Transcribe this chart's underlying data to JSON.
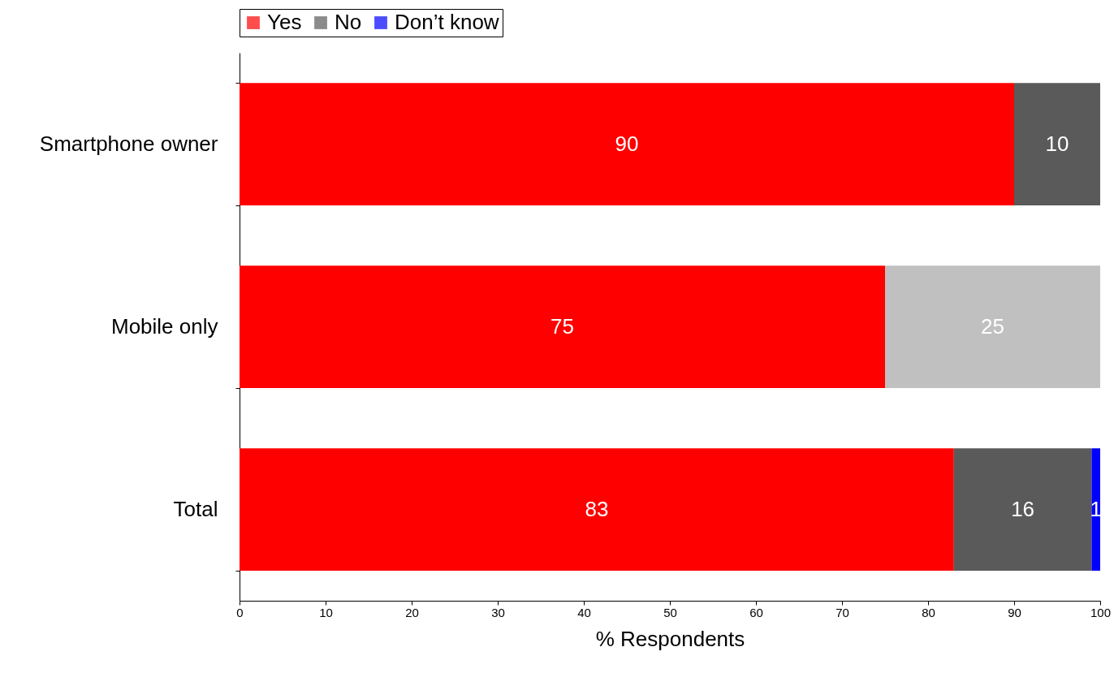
{
  "chart_data": {
    "type": "bar",
    "orientation": "horizontal",
    "stacked": true,
    "xlabel": "% Respondents",
    "categories": [
      "Smartphone owner",
      "Mobile only",
      "Total"
    ],
    "series": [
      {
        "name": "Yes",
        "color": "#ff0000",
        "values": [
          90,
          75,
          83
        ]
      },
      {
        "name": "No",
        "color": "#5a5a5a",
        "colors": [
          "#5a5a5a",
          "#c0c0c0",
          "#5a5a5a"
        ],
        "values": [
          10,
          25,
          16
        ]
      },
      {
        "name": "Don’t know",
        "color": "#0000ff",
        "values": [
          null,
          null,
          1
        ]
      }
    ],
    "xlim": [
      0,
      100
    ],
    "xticks": [
      0,
      10,
      20,
      30,
      40,
      50,
      60,
      70,
      80,
      90,
      100
    ],
    "data_labels": true,
    "legend": "top",
    "grid": false
  }
}
